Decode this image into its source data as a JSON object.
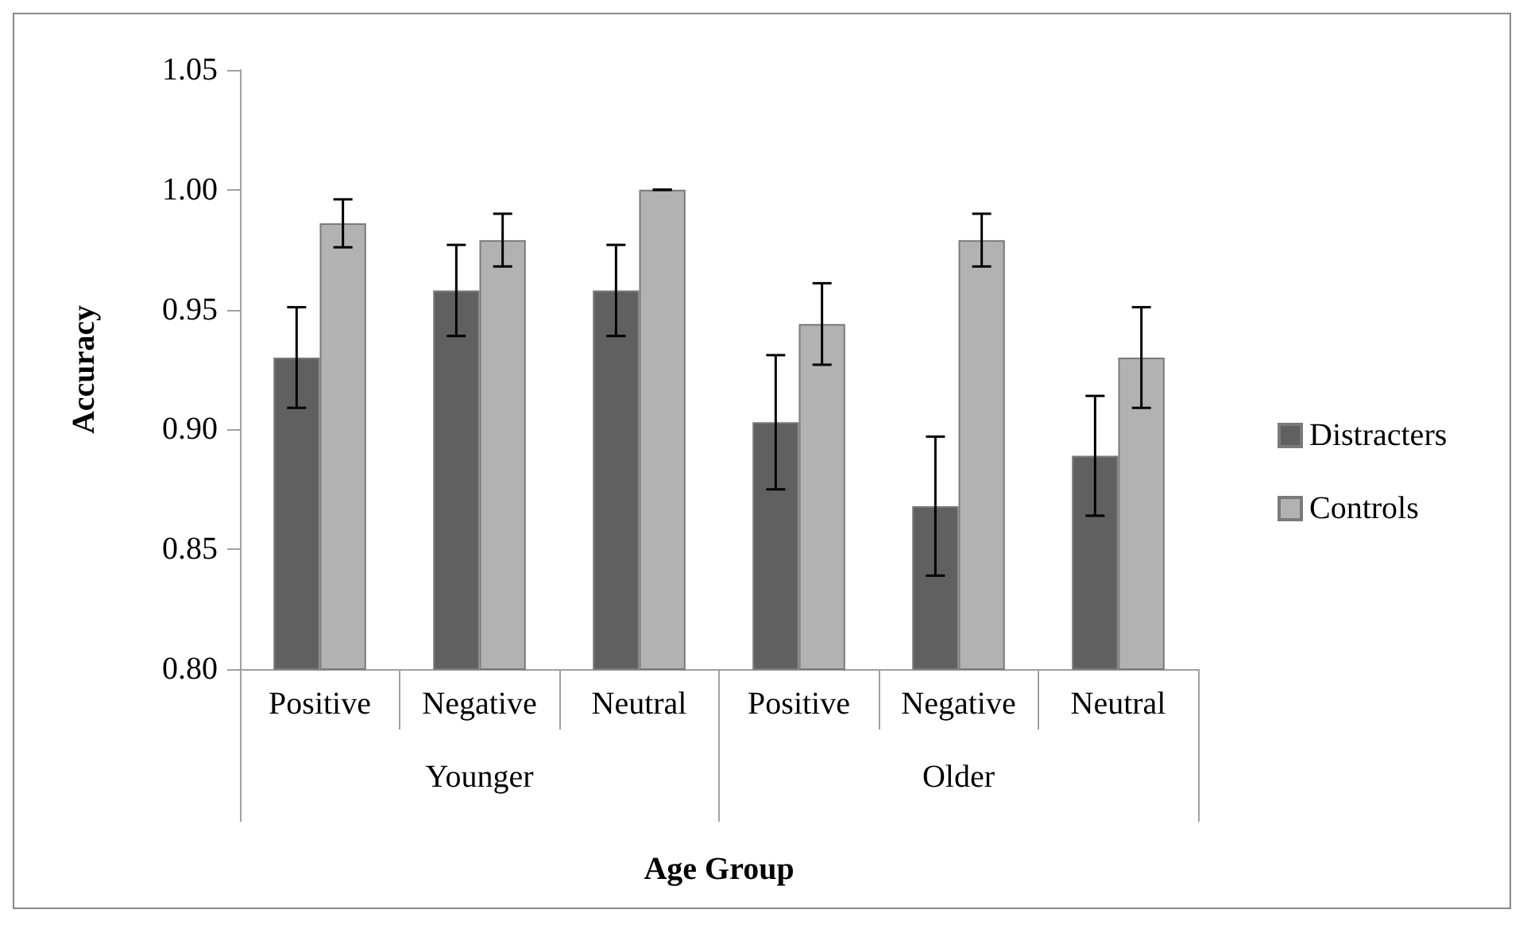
{
  "chart_data": {
    "type": "bar",
    "xlabel": "Age Group",
    "ylabel": "Accuracy",
    "categories": [
      "Positive",
      "Negative",
      "Neutral",
      "Positive",
      "Negative",
      "Neutral"
    ],
    "annotations": [
      "Younger",
      "Older"
    ],
    "series": [
      {
        "name": "Distracters",
        "color": "#606060",
        "values": [
          0.93,
          0.958,
          0.958,
          0.903,
          0.868,
          0.889
        ],
        "errors": [
          0.021,
          0.019,
          0.019,
          0.028,
          0.029,
          0.025
        ]
      },
      {
        "name": "Controls",
        "color": "#b2b2b2",
        "values": [
          0.986,
          0.979,
          1.0,
          0.944,
          0.979,
          0.93
        ],
        "errors": [
          0.01,
          0.011,
          0,
          0.017,
          0.011,
          0.021
        ]
      }
    ],
    "ylim": [
      0.8,
      1.05
    ],
    "yticks": [
      {
        "value": 0.8,
        "label": "0.80"
      },
      {
        "value": 0.85,
        "label": "0.85"
      },
      {
        "value": 0.9,
        "label": "0.90"
      },
      {
        "value": 0.95,
        "label": "0.95"
      },
      {
        "value": 1.0,
        "label": "1.00"
      },
      {
        "value": 1.05,
        "label": "1.05"
      }
    ],
    "grid": false,
    "legend": "right"
  }
}
